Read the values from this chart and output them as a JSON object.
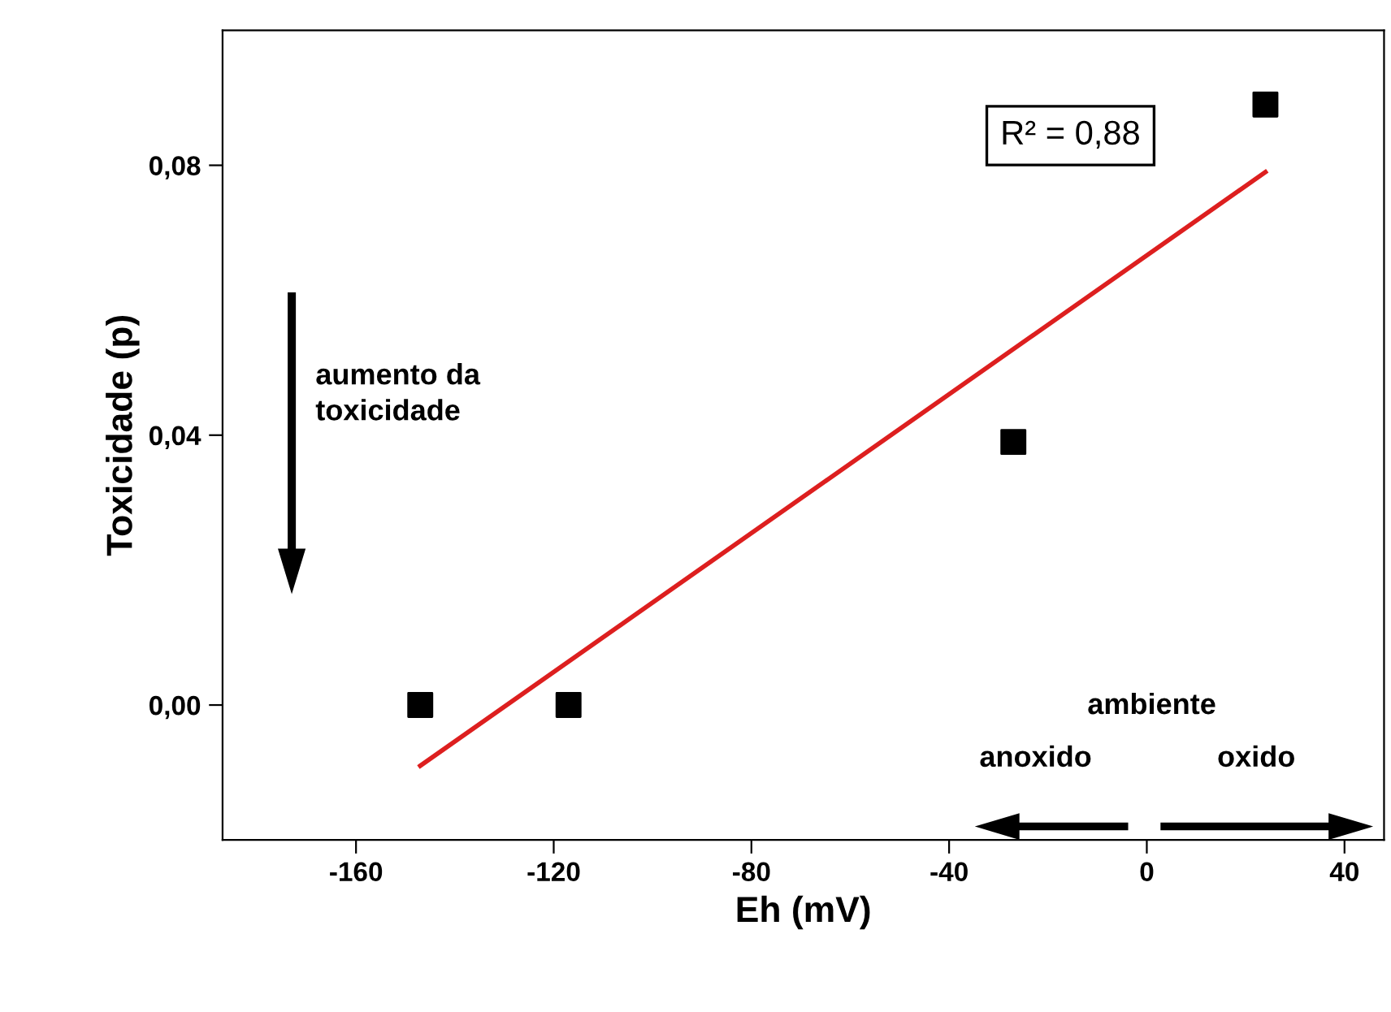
{
  "chart_data": {
    "type": "scatter",
    "xlabel": "Eh (mV)",
    "ylabel": "Toxicidade (p)",
    "xlim": [
      -187,
      48
    ],
    "ylim": [
      -0.02,
      0.1
    ],
    "xticks": [
      -160,
      -120,
      -80,
      -40,
      0,
      40
    ],
    "yticks": [
      {
        "value": 0,
        "label": "0,00"
      },
      {
        "value": 0.04,
        "label": "0,04"
      },
      {
        "value": 0.08,
        "label": "0,08"
      }
    ],
    "marker": "square",
    "grid": false,
    "legend": false,
    "series": [
      {
        "color": "#000000",
        "x": [
          -147,
          -117,
          -27,
          24
        ],
        "values": [
          0,
          0,
          0.039,
          0.089
        ]
      },
      {
        "type": "line",
        "color": "#dd1f1f",
        "x": [
          -147,
          24
        ],
        "values": [
          -0.009,
          0.079
        ],
        "marker": "none",
        "line_style": "solid"
      }
    ],
    "annotations": [
      "R² = 0,88",
      "aumento da\ntoxicidade",
      "ambiente",
      "anoxido",
      "oxido"
    ]
  }
}
